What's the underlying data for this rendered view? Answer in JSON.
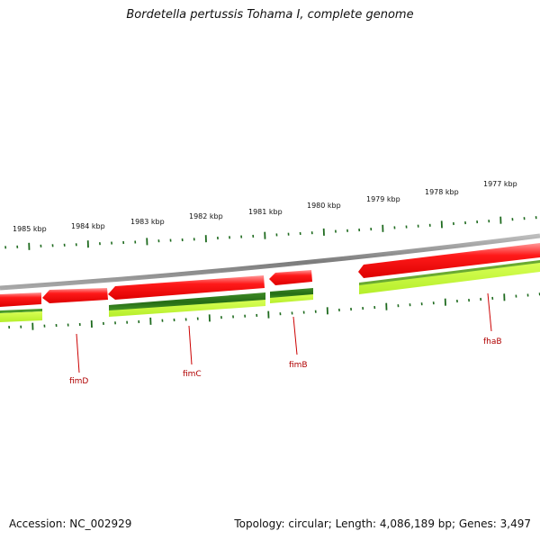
{
  "title": "Bordetella pertussis Tohama I, complete genome",
  "footer": {
    "accession": "Accession: NC_002929",
    "summary": "Topology: circular; Length: 4,086,189 bp; Genes: 3,497"
  },
  "colors": {
    "backbone": "#8a8a8a",
    "forward_gene": "#ee0000",
    "forward_gene_light": "#ff7a7a",
    "reverse_cds_dark": "#2e7d1e",
    "reverse_cds_light": "#c8f53c",
    "tick": "#1f6b1f",
    "label": "#b00000"
  },
  "scale": {
    "unit": "kbp",
    "major_ticks": [
      1985,
      1984,
      1983,
      1982,
      1981,
      1980,
      1979,
      1978,
      1977
    ],
    "tick_labels": [
      "1985 kbp",
      "1984 kbp",
      "1983 kbp",
      "1982 kbp",
      "1981 kbp",
      "1980 kbp",
      "1979 kbp",
      "1978 kbp",
      "1977 kbp"
    ]
  },
  "genes": [
    {
      "name": "fimD",
      "label": "fimD"
    },
    {
      "name": "fimC",
      "label": "fimC"
    },
    {
      "name": "fimB",
      "label": "fimB"
    },
    {
      "name": "fhaB",
      "label": "fhaB"
    }
  ]
}
